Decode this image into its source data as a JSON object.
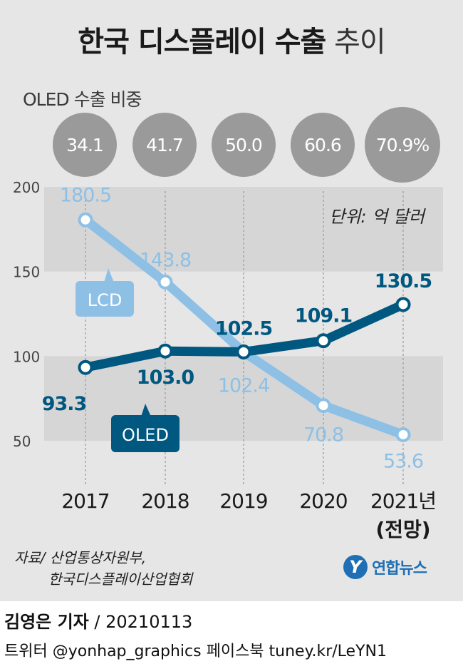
{
  "title": {
    "bold": "한국 디스플레이 수출",
    "light": "추이"
  },
  "oled_share": {
    "label": "OLED 수출 비중",
    "values": [
      "34.1",
      "41.7",
      "50.0",
      "60.6",
      "70.9%"
    ]
  },
  "unit_label": "단위: 억 달러",
  "series_labels": {
    "lcd": "LCD",
    "oled": "OLED"
  },
  "source": {
    "line1": "자료/ 산업통상자원부,",
    "line2": "한국디스플레이산업협회"
  },
  "logo": {
    "mark": "Y",
    "text": "연합뉴스"
  },
  "byline": {
    "name": "김영은 기자",
    "date": " / 20210113"
  },
  "social": "트위터 @yonhap_graphics  페이스북 tuney.kr/LeYN1",
  "colors": {
    "lcd": "#8ec0e6",
    "oled": "#00577f",
    "bubble": "#9a9a9a",
    "band": "#d6d6d6"
  },
  "chart_data": {
    "type": "line",
    "categories": [
      "2017",
      "2018",
      "2019",
      "2020",
      "2021년"
    ],
    "category_sublabels": [
      "",
      "",
      "",
      "",
      "(전망)"
    ],
    "series": [
      {
        "name": "LCD",
        "values": [
          180.5,
          143.8,
          102.4,
          70.8,
          53.6
        ],
        "labels": [
          "180.5",
          "143.8",
          "102.4",
          "70.8",
          "53.6"
        ]
      },
      {
        "name": "OLED",
        "values": [
          93.3,
          103.0,
          102.5,
          109.1,
          130.5
        ],
        "labels": [
          "93.3",
          "103.0",
          "102.5",
          "109.1",
          "130.5"
        ]
      }
    ],
    "yticks": [
      50,
      100,
      150,
      200
    ],
    "ylim": [
      50,
      200
    ],
    "title": "한국 디스플레이 수출 추이",
    "ylabel": "억 달러",
    "xlabel": ""
  }
}
